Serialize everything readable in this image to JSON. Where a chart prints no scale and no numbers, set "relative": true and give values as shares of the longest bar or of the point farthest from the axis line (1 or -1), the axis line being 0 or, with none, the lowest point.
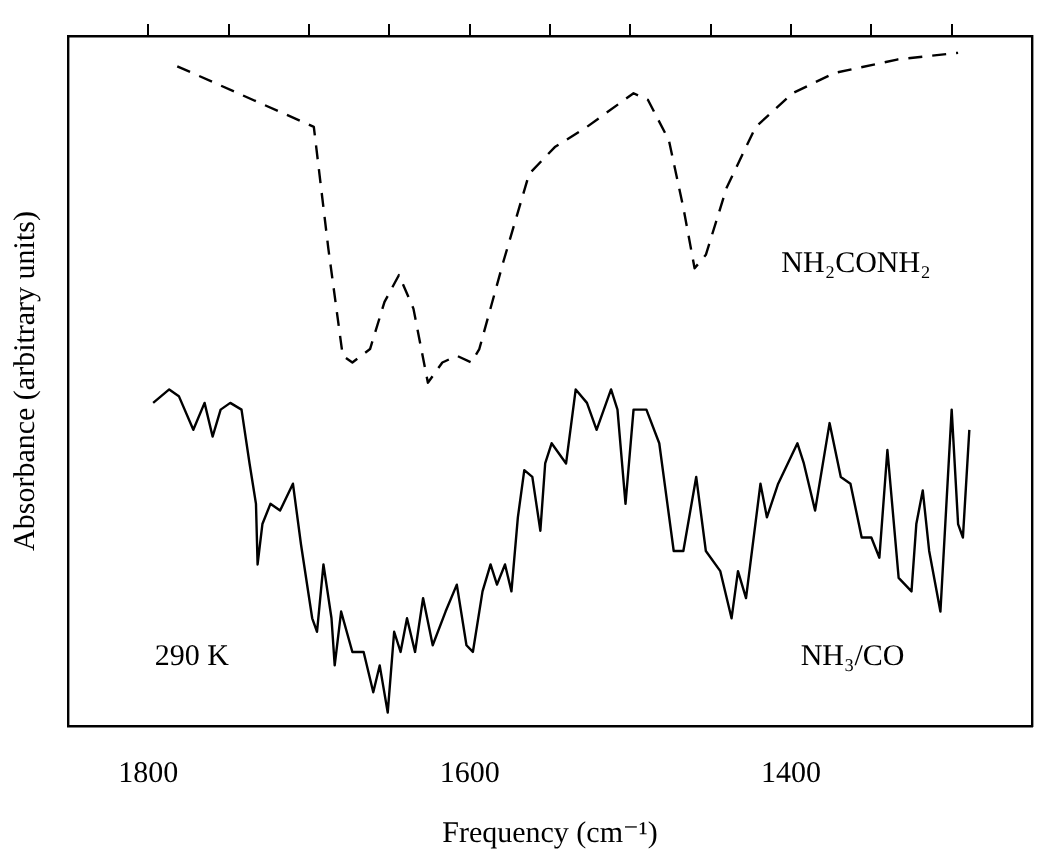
{
  "chart_data": {
    "type": "line",
    "relative": true,
    "xlabel": "Frequency (cm⁻¹)",
    "ylabel": "Absorbance (arbitrary units)",
    "annotations": [
      "290 K"
    ],
    "xlim": [
      1850,
      1250
    ],
    "xticks": [
      1800,
      {
        "value": 1750,
        "label": null
      },
      {
        "value": 1700,
        "label": null
      },
      {
        "value": 1650,
        "label": null
      },
      1600,
      {
        "value": 1550,
        "label": null
      },
      {
        "value": 1500,
        "label": null
      },
      {
        "value": 1450,
        "label": null
      },
      1400,
      {
        "value": 1350,
        "label": null
      },
      {
        "value": 1300,
        "label": null
      }
    ],
    "tick_labels": "x",
    "grid": false,
    "legend": false,
    "marker": "none",
    "series": [
      {
        "name": "NH₂CONH₂",
        "color": "#000000",
        "line_style": "dashed",
        "x": [
          1782,
          1697,
          1688,
          1679,
          1673,
          1662,
          1653,
          1644,
          1635,
          1626,
          1617,
          1608,
          1599,
          1594,
          1579,
          1563,
          1547,
          1527,
          1498,
          1489,
          1476,
          1467,
          1460,
          1453,
          1440,
          1422,
          1399,
          1373,
          1334,
          1296
        ],
        "values": [
          0.98,
          0.89,
          0.71,
          0.55,
          0.54,
          0.56,
          0.63,
          0.67,
          0.62,
          0.51,
          0.54,
          0.55,
          0.54,
          0.56,
          0.69,
          0.82,
          0.86,
          0.89,
          0.94,
          0.93,
          0.87,
          0.77,
          0.68,
          0.7,
          0.8,
          0.89,
          0.94,
          0.97,
          0.99,
          1
        ]
      },
      {
        "name": "NH₃/CO",
        "color": "#000000",
        "line_style": "solid",
        "x": [
          1797,
          1787,
          1781,
          1772,
          1765,
          1760,
          1755,
          1749,
          1742,
          1737,
          1733,
          1732,
          1729,
          1724,
          1718,
          1710,
          1705,
          1698,
          1695,
          1691,
          1686,
          1684,
          1680,
          1673,
          1666,
          1660,
          1656,
          1651,
          1647,
          1643,
          1639,
          1634,
          1629,
          1623,
          1615,
          1608,
          1602,
          1598,
          1592,
          1587,
          1583,
          1578,
          1574,
          1570,
          1566,
          1561,
          1556,
          1553,
          1549,
          1540,
          1534,
          1527,
          1521,
          1512,
          1508,
          1503,
          1498,
          1490,
          1482,
          1473,
          1467,
          1459,
          1453,
          1444,
          1437,
          1433,
          1428,
          1419,
          1415,
          1408,
          1396,
          1392,
          1385,
          1376,
          1369,
          1363,
          1356,
          1350,
          1345,
          1340,
          1333,
          1325,
          1322,
          1318,
          1314,
          1307,
          1300,
          1296,
          1293,
          1289
        ],
        "values": [
          0.48,
          0.5,
          0.49,
          0.44,
          0.48,
          0.43,
          0.47,
          0.48,
          0.47,
          0.39,
          0.33,
          0.24,
          0.3,
          0.33,
          0.32,
          0.36,
          0.27,
          0.16,
          0.14,
          0.24,
          0.16,
          0.09,
          0.17,
          0.11,
          0.11,
          0.05,
          0.09,
          0.02,
          0.14,
          0.11,
          0.16,
          0.11,
          0.19,
          0.12,
          0.17,
          0.21,
          0.12,
          0.11,
          0.2,
          0.24,
          0.21,
          0.24,
          0.2,
          0.31,
          0.38,
          0.37,
          0.29,
          0.39,
          0.42,
          0.39,
          0.5,
          0.48,
          0.44,
          0.5,
          0.47,
          0.33,
          0.47,
          0.47,
          0.42,
          0.26,
          0.26,
          0.37,
          0.26,
          0.23,
          0.16,
          0.23,
          0.19,
          0.36,
          0.31,
          0.36,
          0.42,
          0.39,
          0.32,
          0.45,
          0.37,
          0.36,
          0.28,
          0.28,
          0.25,
          0.41,
          0.22,
          0.2,
          0.3,
          0.35,
          0.26,
          0.17,
          0.47,
          0.3,
          0.28,
          0.44
        ]
      }
    ]
  }
}
